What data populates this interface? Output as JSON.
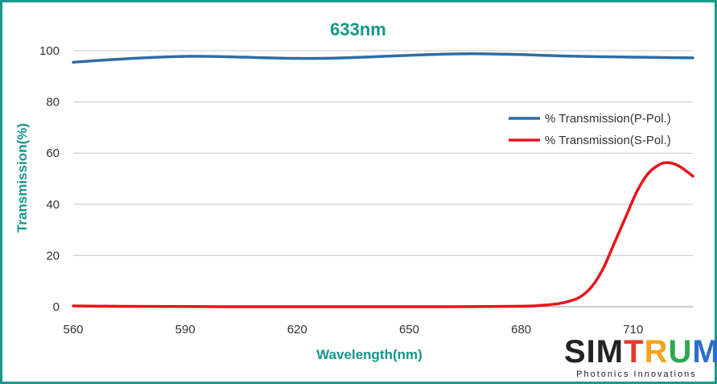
{
  "chart_data": {
    "type": "line",
    "title": "633nm",
    "xlabel": "Wavelength(nm)",
    "ylabel": "Transmission(%)",
    "xlim": [
      560,
      726
    ],
    "ylim": [
      0,
      100
    ],
    "xticks": [
      560,
      590,
      620,
      650,
      680,
      710
    ],
    "yticks": [
      0,
      20,
      40,
      60,
      80,
      100
    ],
    "grid": "horizontal",
    "legend_position": "top-right",
    "series": [
      {
        "name": "% Transmission(P-Pol.)",
        "color": "#2e6da4",
        "x": [
          560,
          570,
          580,
          590,
          600,
          610,
          620,
          630,
          640,
          650,
          660,
          665,
          670,
          680,
          690,
          700,
          710,
          720,
          726
        ],
        "y": [
          95.5,
          96.5,
          97.3,
          97.8,
          97.7,
          97.3,
          97.0,
          97.1,
          97.6,
          98.2,
          98.7,
          98.8,
          98.8,
          98.5,
          98.0,
          97.7,
          97.5,
          97.3,
          97.2
        ]
      },
      {
        "name": "% Transmission(S-Pol.)",
        "color": "#e8141c",
        "x": [
          560,
          580,
          600,
          620,
          640,
          660,
          680,
          685,
          690,
          693,
          696,
          699,
          702,
          705,
          708,
          711,
          714,
          717,
          719,
          721,
          723,
          726
        ],
        "y": [
          0.3,
          0.1,
          0.0,
          0.0,
          0.0,
          0.0,
          0.2,
          0.5,
          1.2,
          2.2,
          4.0,
          8.0,
          15.0,
          25.0,
          35.0,
          45.0,
          52.0,
          55.5,
          56.3,
          55.8,
          54.3,
          51.0
        ]
      }
    ]
  },
  "logo": {
    "brand": "SIMTRUM",
    "tagline": "Photonics Innovations"
  }
}
